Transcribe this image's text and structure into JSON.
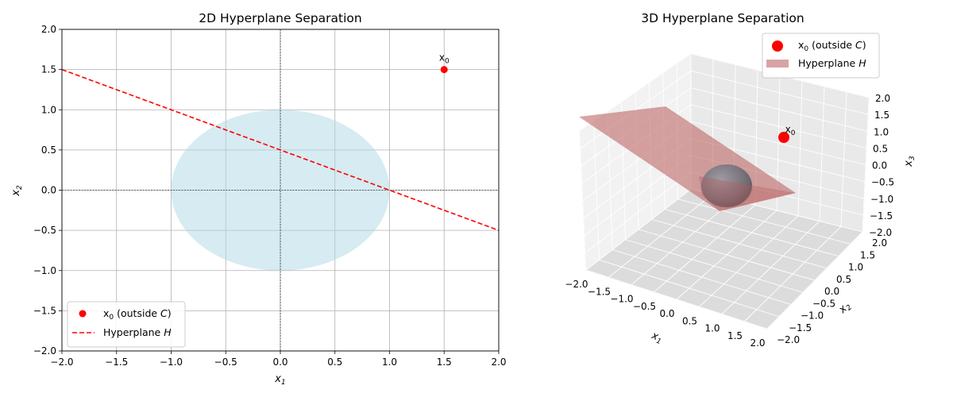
{
  "chart_data": [
    {
      "type": "scatter",
      "title": "2D Hyperplane Separation",
      "xlabel": "x1",
      "ylabel": "x2",
      "xlim": [
        -2,
        2
      ],
      "ylim": [
        -2,
        2
      ],
      "xticks": [
        "−2.0",
        "−1.5",
        "−1.0",
        "−0.5",
        "0.0",
        "0.5",
        "1.0",
        "1.5",
        "2.0"
      ],
      "yticks": [
        "−2.0",
        "−1.5",
        "−1.0",
        "−0.5",
        "0.0",
        "0.5",
        "1.0",
        "1.5",
        "2.0"
      ],
      "grid": true,
      "legend_position": "lower-left",
      "set_C": {
        "shape": "ellipse",
        "center": [
          0,
          0
        ],
        "radii": [
          1,
          1
        ],
        "color": "#add8e6"
      },
      "point": {
        "label": "x0",
        "legend": "x0 (outside C)",
        "x": 1.5,
        "y": 1.5,
        "color": "#ff0000"
      },
      "hyperplane": {
        "legend": "Hyperplane H",
        "x": [
          -2,
          2
        ],
        "y": [
          1.5,
          -0.5
        ],
        "color": "#ff0000",
        "style": "dashed"
      }
    },
    {
      "type": "surface3d",
      "title": "3D Hyperplane Separation",
      "xlabel": "x1",
      "ylabel": "x2",
      "zlabel": "x3",
      "xlim": [
        -2,
        2
      ],
      "ylim": [
        -2,
        2
      ],
      "zlim": [
        -2,
        2
      ],
      "xticks": [
        "−2.0",
        "−1.5",
        "−1.0",
        "−0.5",
        "0.0",
        "0.5",
        "1.0",
        "1.5",
        "2.0"
      ],
      "yticks": [
        "−2.0",
        "−1.5",
        "−1.0",
        "−0.5",
        "0.0",
        "0.5",
        "1.0",
        "1.5",
        "2.0"
      ],
      "zticks": [
        "−2.0",
        "−1.5",
        "−1.0",
        "−0.5",
        "0.0",
        "0.5",
        "1.0",
        "1.5",
        "2.0"
      ],
      "legend_position": "top-right",
      "set_C": {
        "shape": "sphere",
        "center": [
          0,
          0,
          0
        ],
        "radius": 1,
        "color": "#6f6f78"
      },
      "point": {
        "label": "x0",
        "legend": "x0 (outside C)",
        "x": 1.5,
        "y": 1.5,
        "z": 1.5,
        "color": "#ff0000"
      },
      "hyperplane": {
        "legend": "Hyperplane H",
        "color": "#b85a5a",
        "opacity": 0.55
      }
    }
  ]
}
